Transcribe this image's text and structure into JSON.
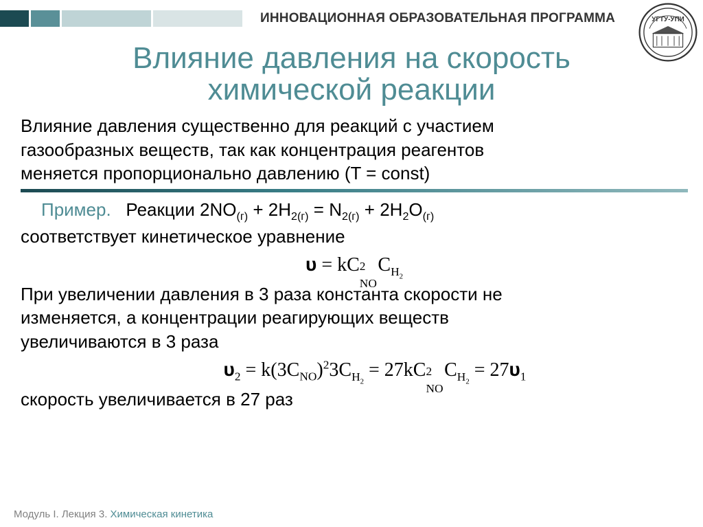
{
  "header": {
    "program_label": "ИННОВАЦИОННАЯ ОБРАЗОВАТЕЛЬНАЯ ПРОГРАММА",
    "logo_text": "УГТУ-УПИ",
    "blocks": [
      {
        "w": 42,
        "color": "#1c4a52"
      },
      {
        "w": 42,
        "color": "#5a9098"
      },
      {
        "w": 130,
        "color": "#bfd4d6"
      },
      {
        "w": 130,
        "color": "#d9e4e5"
      }
    ]
  },
  "title": {
    "line1": "Влияние давления на скорость",
    "line2": "химической реакции",
    "color": "#4f8c94"
  },
  "intro": {
    "l1": "Влияние давления существенно для реакций с участием",
    "l2": "газообразных веществ, так как концентрация реагентов",
    "l3": "меняется пропорционально давлению (T = const)"
  },
  "example": {
    "label": "Пример.",
    "reaction_prefix": "Реакции ",
    "eq": {
      "a": "2NO",
      "a_phase": "(г)",
      "plus1": " + ",
      "b": "2H",
      "b_sub": "2",
      "b_phase": "(г)",
      "eq": " = ",
      "c": "N",
      "c_sub": "2",
      "c_phase": "(г)",
      "plus2": " + ",
      "d": "2H",
      "d_sub": "2",
      "d2": "O",
      "d_phase": "(г)"
    }
  },
  "kinetic_line": "соответствует кинетическое уравнение",
  "formula1": {
    "upsilon": "υ",
    "text": " = kC",
    "sup1": "2",
    "sub1": "NO",
    "text2": "C",
    "sub2": "H",
    "sub2b": "2"
  },
  "mid": {
    "l1": "При увеличении давления в 3 раза константа скорости не",
    "l2": "изменяется, а концентрации реагирующих веществ",
    "l3": "увеличиваются в 3 раза"
  },
  "formula2": {
    "ups": "υ",
    "sub_ups": "2",
    "p1": " = k(3C",
    "sub1": "NO",
    "p1b": ")",
    "sup1": "2",
    "p2": "3C",
    "sub2": "H",
    "sub2b": "2",
    "p3": " = 27kC",
    "sup3": "2",
    "sub3": "NO",
    "p4": "C",
    "sub4": "H",
    "sub4b": "2",
    "p5": " = 27",
    "ups2": "υ",
    "sub_ups2": "1"
  },
  "conclusion": "скорость увеличивается в 27 раз",
  "footer": {
    "module": "Модуль I. Лекция 3. ",
    "topic": "Химическая кинетика"
  }
}
